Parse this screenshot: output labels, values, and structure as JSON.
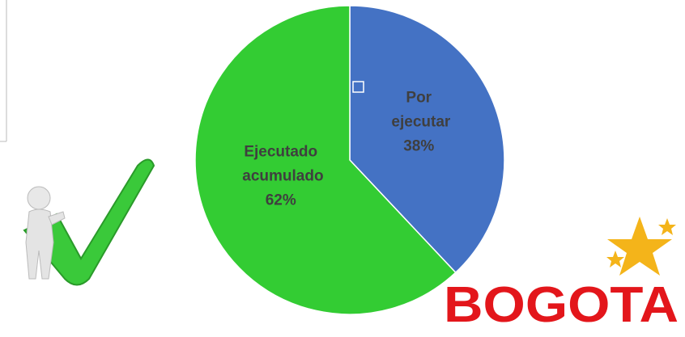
{
  "chart_data": {
    "type": "pie",
    "categories": [
      "Por ejecutar",
      "Ejecutado acumulado"
    ],
    "values": [
      38,
      62
    ],
    "value_labels": [
      "38%",
      "62%"
    ],
    "colors": [
      "#4472c4",
      "#33cc33"
    ]
  },
  "logo": "BOGOTA"
}
